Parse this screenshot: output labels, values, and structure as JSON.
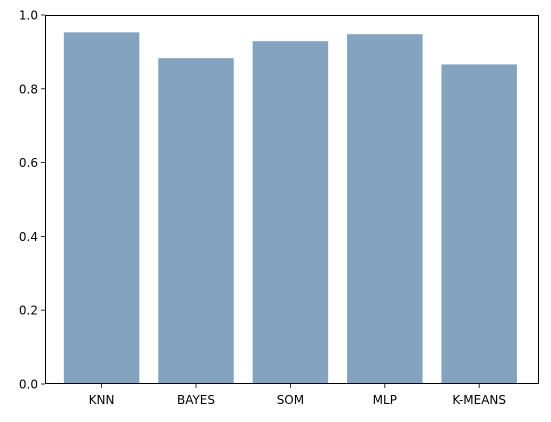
{
  "chart_data": {
    "type": "bar",
    "categories": [
      "KNN",
      "BAYES",
      "SOM",
      "MLP",
      "K-MEANS"
    ],
    "values": [
      0.953,
      0.883,
      0.929,
      0.948,
      0.866
    ],
    "ylim": [
      0,
      1.0
    ],
    "yticks": [
      "0.0",
      "0.2",
      "0.4",
      "0.6",
      "0.8",
      "1.0"
    ],
    "bar_color": "#84a3c1",
    "grid": false
  }
}
